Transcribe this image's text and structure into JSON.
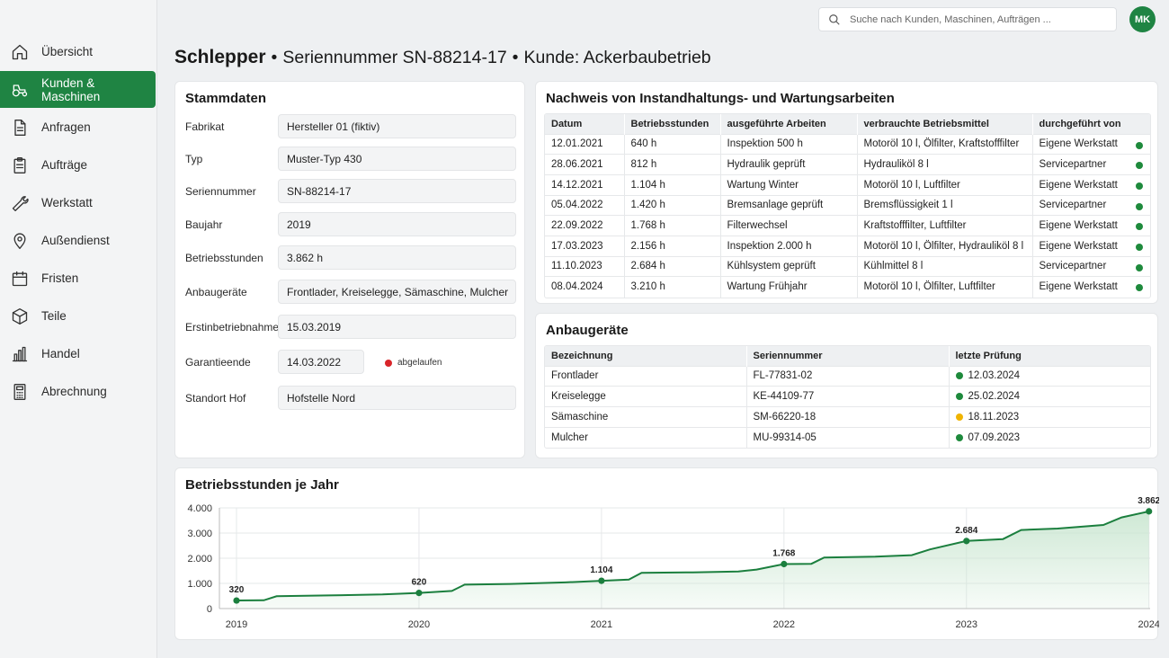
{
  "sidebar": {
    "items": [
      {
        "label": "Übersicht",
        "icon": "home-icon"
      },
      {
        "label": "Kunden & Maschinen",
        "icon": "tractor-icon",
        "active": true
      },
      {
        "label": "Anfragen",
        "icon": "document-icon"
      },
      {
        "label": "Aufträge",
        "icon": "clipboard-icon"
      },
      {
        "label": "Werkstatt",
        "icon": "wrench-icon"
      },
      {
        "label": "Außendienst",
        "icon": "map-pin-icon"
      },
      {
        "label": "Fristen",
        "icon": "calendar-icon"
      },
      {
        "label": "Teile",
        "icon": "box-icon"
      },
      {
        "label": "Handel",
        "icon": "bar-chart-icon"
      },
      {
        "label": "Abrechnung",
        "icon": "calculator-icon"
      }
    ]
  },
  "search": {
    "placeholder": "Suche nach Kunden, Maschinen, Aufträgen ..."
  },
  "user": {
    "initials": "MK"
  },
  "heading": {
    "machine": "Schlepper",
    "separator": "•",
    "serial": "Seriennummer SN-88214-17",
    "customer": "Kunde: Ackerbaubetrieb"
  },
  "stammdaten": {
    "title": "Stammdaten",
    "fields": [
      {
        "label": "Fabrikat",
        "value": "Hersteller 01 (fiktiv)"
      },
      {
        "label": "Typ",
        "value": "Muster-Typ 430"
      },
      {
        "label": "Seriennummer",
        "value": "SN-88214-17"
      },
      {
        "label": "Baujahr",
        "value": "2019"
      },
      {
        "label": "Betriebsstunden",
        "value": "3.862 h"
      },
      {
        "label": "Anbaugeräte",
        "value": "Frontlader, Kreiselegge, Sämaschine, Mulcher"
      },
      {
        "label": "Erstinbetriebnahme",
        "value": "15.03.2019"
      },
      {
        "label": "Garantieende",
        "value": "14.03.2022",
        "status": "abgelaufen",
        "status_color": "#d9252a"
      },
      {
        "label": "Standort Hof",
        "value": "Hofstelle Nord"
      }
    ]
  },
  "wartung": {
    "title": "Nachweis von Instandhaltungs- und Wartungsarbeiten",
    "columns": [
      "Datum",
      "Betriebsstunden",
      "ausgeführte Arbeiten",
      "verbrauchte Betriebsmittel",
      "durchgeführt von"
    ],
    "rows": [
      [
        "12.01.2021",
        "640 h",
        "Inspektion 500 h",
        "Motoröl 10 l, Ölfilter, Kraftstofffilter",
        "Eigene Werkstatt"
      ],
      [
        "28.06.2021",
        "812 h",
        "Hydraulik geprüft",
        "Hydrauliköl 8 l",
        "Servicepartner"
      ],
      [
        "14.12.2021",
        "1.104 h",
        "Wartung Winter",
        "Motoröl 10 l, Luftfilter",
        "Eigene Werkstatt"
      ],
      [
        "05.04.2022",
        "1.420 h",
        "Bremsanlage geprüft",
        "Bremsflüssigkeit 1 l",
        "Servicepartner"
      ],
      [
        "22.09.2022",
        "1.768 h",
        "Filterwechsel",
        "Kraftstofffilter, Luftfilter",
        "Eigene Werkstatt"
      ],
      [
        "17.03.2023",
        "2.156 h",
        "Inspektion 2.000 h",
        "Motoröl 10 l, Ölfilter, Hydrauliköl 8 l",
        "Eigene Werkstatt"
      ],
      [
        "11.10.2023",
        "2.684 h",
        "Kühlsystem geprüft",
        "Kühlmittel 8 l",
        "Servicepartner"
      ],
      [
        "08.04.2024",
        "3.210 h",
        "Wartung Frühjahr",
        "Motoröl 10 l, Ölfilter, Luftfilter",
        "Eigene Werkstatt"
      ]
    ],
    "status_color": "#1e8a3c"
  },
  "anbaugeraete": {
    "title": "Anbaugeräte",
    "columns": [
      "Bezeichnung",
      "Seriennummer",
      "letzte Prüfung"
    ],
    "rows": [
      {
        "name": "Frontlader",
        "serial": "FL-77831-02",
        "date": "12.03.2024",
        "status": "green"
      },
      {
        "name": "Kreiselegge",
        "serial": "KE-44109-77",
        "date": "25.02.2024",
        "status": "green"
      },
      {
        "name": "Sämaschine",
        "serial": "SM-66220-18",
        "date": "18.11.2023",
        "status": "yellow"
      },
      {
        "name": "Mulcher",
        "serial": "MU-99314-05",
        "date": "07.09.2023",
        "status": "green"
      }
    ]
  },
  "chart_data": {
    "type": "area",
    "title": "Betriebsstunden je Jahr",
    "xlabel": "",
    "ylabel": "",
    "x_ticks": [
      "2019",
      "2020",
      "2021",
      "2022",
      "2023",
      "2024"
    ],
    "y_ticks": [
      "0",
      "1.000",
      "2.000",
      "3.000",
      "4.000"
    ],
    "ylim": [
      0,
      4000
    ],
    "xlim": [
      2019,
      2024.1
    ],
    "labeled_points": [
      {
        "x": 2019,
        "y": 320,
        "label": "320"
      },
      {
        "x": 2020,
        "y": 620,
        "label": "620"
      },
      {
        "x": 2021,
        "y": 1104,
        "label": "1.104"
      },
      {
        "x": 2022,
        "y": 1768,
        "label": "1.768"
      },
      {
        "x": 2023,
        "y": 2684,
        "label": "2.684"
      },
      {
        "x": 2024,
        "y": 3862,
        "label": "3.862"
      }
    ],
    "series": [
      {
        "x": [
          2019,
          2019.15,
          2019.22,
          2019.5,
          2019.8,
          2020,
          2020.18,
          2020.25,
          2020.5,
          2020.8,
          2021,
          2021.15,
          2021.22,
          2021.5,
          2021.75,
          2021.85,
          2022,
          2022.15,
          2022.22,
          2022.5,
          2022.7,
          2022.8,
          2023,
          2023.2,
          2023.3,
          2023.5,
          2023.75,
          2023.85,
          2024
        ],
        "y": [
          320,
          330,
          490,
          520,
          560,
          620,
          700,
          950,
          980,
          1040,
          1104,
          1150,
          1420,
          1440,
          1470,
          1550,
          1768,
          1780,
          2030,
          2060,
          2120,
          2350,
          2684,
          2760,
          3120,
          3180,
          3320,
          3620,
          3862
        ]
      }
    ],
    "colors": {
      "line": "#1b7f3e",
      "fill": "#c9e6d0",
      "grid": "#e6e8ea"
    },
    "grid": true
  }
}
